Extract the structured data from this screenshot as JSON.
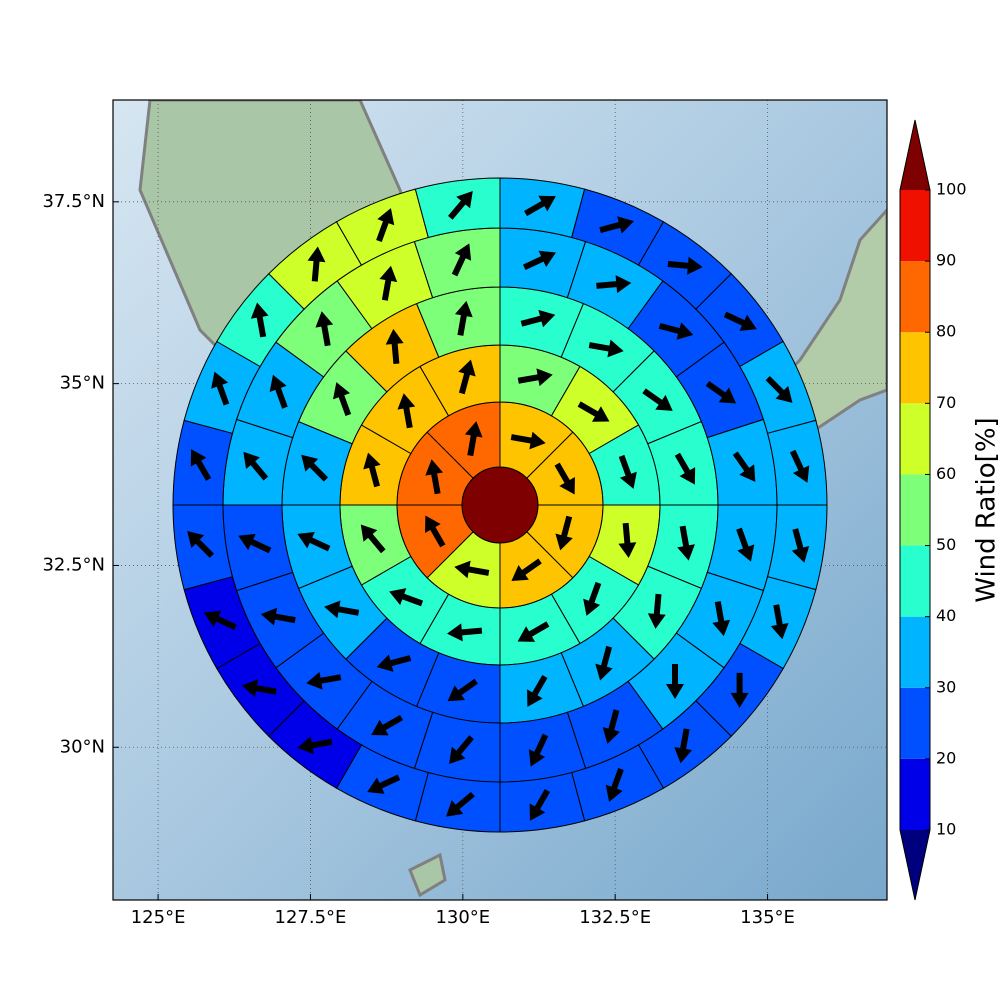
{
  "chart_data": {
    "type": "polar_sectors",
    "colorbar_label": "Wind Ratio[%]",
    "xlim": [
      124.26,
      136.96
    ],
    "ylim": [
      27.9,
      38.9
    ],
    "xticks": [
      {
        "value": 125,
        "label": "125°E"
      },
      {
        "value": 127.5,
        "label": "127.5°E"
      },
      {
        "value": 130,
        "label": "130°E"
      },
      {
        "value": 132.5,
        "label": "132.5°E"
      },
      {
        "value": 135,
        "label": "135°E"
      }
    ],
    "yticks": [
      {
        "value": 30,
        "label": "30°N"
      },
      {
        "value": 32.5,
        "label": "32.5°N"
      },
      {
        "value": 35,
        "label": "35°N"
      },
      {
        "value": 37.5,
        "label": "37.5°N"
      }
    ],
    "grid": true,
    "center_value": 105,
    "rings": [
      {
        "values": [
          75,
          75,
          75,
          75,
          65,
          85,
          85,
          85
        ],
        "directions": [
          100,
          150,
          195,
          235,
          280,
          330,
          350,
          10
        ]
      },
      {
        "values": [
          55,
          65,
          45,
          65,
          45,
          45,
          45,
          45,
          55,
          75,
          75,
          75
        ],
        "directions": [
          80,
          120,
          160,
          175,
          200,
          240,
          265,
          290,
          320,
          345,
          350,
          15
        ]
      },
      {
        "values": [
          45,
          45,
          45,
          45,
          45,
          45,
          35,
          35,
          25,
          25,
          35,
          35,
          35,
          55,
          75,
          55
        ],
        "directions": [
          75,
          100,
          125,
          150,
          170,
          185,
          195,
          210,
          235,
          255,
          280,
          295,
          315,
          340,
          355,
          10
        ]
      },
      {
        "values": [
          35,
          35,
          25,
          25,
          35,
          35,
          35,
          35,
          25,
          25,
          25,
          25,
          25,
          25,
          25,
          35,
          35,
          55,
          65,
          55
        ],
        "directions": [
          65,
          85,
          105,
          125,
          145,
          160,
          170,
          180,
          195,
          205,
          220,
          240,
          260,
          280,
          295,
          320,
          340,
          350,
          10,
          25
        ]
      },
      {
        "values": [
          35,
          25,
          25,
          25,
          35,
          35,
          35,
          35,
          25,
          25,
          25,
          25,
          25,
          25,
          15,
          15,
          15,
          25,
          25,
          35,
          45,
          65,
          65,
          45
        ],
        "directions": [
          60,
          75,
          95,
          115,
          135,
          155,
          165,
          170,
          180,
          190,
          200,
          210,
          230,
          245,
          260,
          280,
          295,
          315,
          330,
          340,
          350,
          5,
          20,
          40
        ]
      }
    ],
    "colorbar": {
      "levels": [
        10,
        20,
        30,
        40,
        50,
        60,
        70,
        80,
        90,
        100
      ],
      "colors": [
        "#0000e8",
        "#0050ff",
        "#00b4ff",
        "#29ffce",
        "#7dff7a",
        "#ceff29",
        "#ffc400",
        "#ff6800",
        "#f01000"
      ],
      "under_color": "#00007f",
      "over_color": "#7f0000"
    }
  }
}
